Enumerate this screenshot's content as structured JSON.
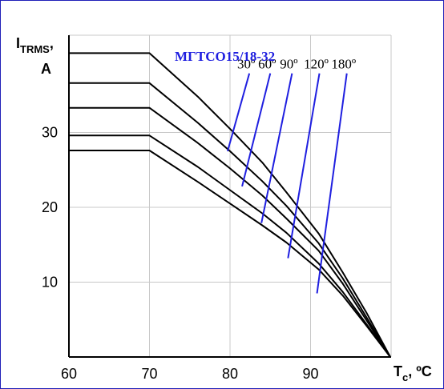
{
  "chart_data": {
    "type": "line",
    "title": "МГТСО15/18-32",
    "ylabel_main": "I",
    "ylabel_sub": "TRMS",
    "ylabel_sep": ",",
    "ylabel_unit": "A",
    "xlabel_main": "T",
    "xlabel_sub": "c",
    "xlabel_unit": ", ºC",
    "xlim": [
      60,
      100
    ],
    "ylim": [
      0,
      43
    ],
    "grid": true,
    "x_ticks": [
      60,
      70,
      80,
      90
    ],
    "y_ticks": [
      10,
      20,
      30
    ],
    "colors": {
      "curves": "#000000",
      "leaders": "#1f1fe0",
      "title": "#1f1fe0",
      "grid": "#c8c8c8",
      "frame": "#1f1fb8"
    },
    "series": [
      {
        "name": "30º",
        "x": [
          60,
          70,
          76,
          80,
          84,
          87,
          91,
          94,
          97,
          99.9
        ],
        "y": [
          40.6,
          40.6,
          34.8,
          30.5,
          26.0,
          22.0,
          16.5,
          11.3,
          5.8,
          0
        ]
      },
      {
        "name": "60º",
        "x": [
          60,
          70,
          76,
          80,
          84,
          87,
          91,
          94,
          97,
          99.9
        ],
        "y": [
          36.6,
          36.6,
          31.3,
          27.5,
          23.5,
          20.2,
          15.2,
          10.5,
          5.2,
          0
        ]
      },
      {
        "name": "90º",
        "x": [
          60,
          70,
          76,
          80,
          84,
          87,
          91,
          94,
          97,
          99.9
        ],
        "y": [
          33.3,
          33.3,
          28.6,
          25.2,
          21.6,
          18.5,
          14.2,
          9.8,
          4.8,
          0
        ]
      },
      {
        "name": "120º",
        "x": [
          60,
          70,
          76,
          80,
          84,
          87,
          91,
          94,
          97,
          99.9
        ],
        "y": [
          29.6,
          29.6,
          25.4,
          22.3,
          19.2,
          16.6,
          12.5,
          8.7,
          4.3,
          0
        ]
      },
      {
        "name": "180º",
        "x": [
          60,
          70,
          76,
          80,
          84,
          87,
          91,
          94,
          97,
          99.9
        ],
        "y": [
          27.6,
          27.6,
          23.4,
          20.5,
          17.6,
          15.3,
          11.7,
          8.2,
          4.1,
          0
        ]
      }
    ],
    "leaders": [
      {
        "label": "30º",
        "from": [
          82.4,
          37.9
        ],
        "to": [
          79.7,
          27.5
        ]
      },
      {
        "label": "60º",
        "from": [
          85.0,
          37.9
        ],
        "to": [
          81.5,
          22.8
        ]
      },
      {
        "label": "90º",
        "from": [
          87.7,
          37.9
        ],
        "to": [
          83.9,
          17.9
        ]
      },
      {
        "label": "120º",
        "from": [
          91.1,
          37.9
        ],
        "to": [
          87.2,
          13.2
        ]
      },
      {
        "label": "180º",
        "from": [
          94.5,
          37.9
        ],
        "to": [
          90.8,
          8.5
        ]
      }
    ]
  }
}
